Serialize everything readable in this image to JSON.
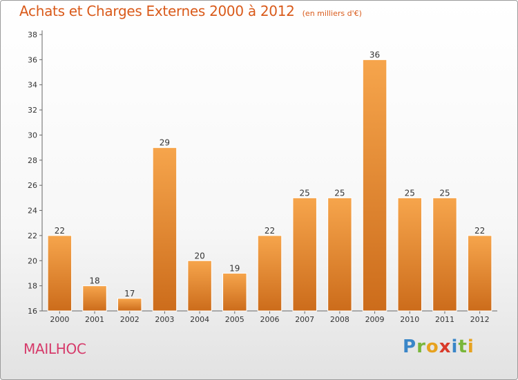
{
  "header": {
    "title": "Achats et Charges Externes 2000 à 2012",
    "subtitle": "(en milliers d'€)"
  },
  "commune": "MAILHOC",
  "logo": "Proxiti",
  "colors": {
    "bar_light": "#f6a54c",
    "bar_dark": "#cc6c1b",
    "title": "#d95a1a",
    "commune": "#d63a6a"
  },
  "chart_data": {
    "type": "bar",
    "categories": [
      "2000",
      "2001",
      "2002",
      "2003",
      "2004",
      "2005",
      "2006",
      "2007",
      "2008",
      "2009",
      "2010",
      "2011",
      "2012"
    ],
    "values": [
      22,
      18,
      17,
      29,
      20,
      19,
      22,
      25,
      25,
      36,
      25,
      25,
      22
    ],
    "title": "Achats et Charges Externes 2000 à 2012",
    "subtitle": "(en milliers d'€)",
    "ylim": [
      16,
      38
    ],
    "yticks": [
      16,
      18,
      20,
      22,
      24,
      26,
      28,
      30,
      32,
      34,
      36,
      38
    ],
    "grid": false,
    "data_labels": true
  }
}
